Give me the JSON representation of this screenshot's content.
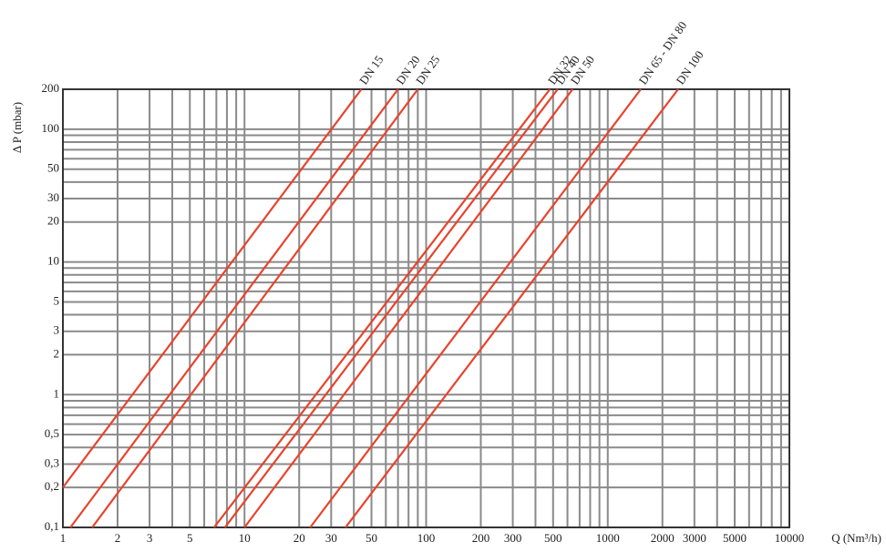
{
  "chart_data": {
    "type": "line",
    "x_label": "Q (Nm³/h)",
    "y_label": "Δ P (mbar)",
    "log_x": true,
    "log_y": true,
    "color": "#e8432c",
    "xlim": [
      1,
      10000
    ],
    "ylim": [
      0.1,
      200
    ],
    "xticks": [
      1,
      2,
      3,
      5,
      10,
      20,
      30,
      50,
      100,
      200,
      300,
      500,
      1000,
      2000,
      3000,
      5000,
      10000
    ],
    "yticks": [
      {
        "value": 0.1,
        "label": "0,1"
      },
      {
        "value": 0.2,
        "label": "0,2"
      },
      {
        "value": 0.3,
        "label": "0,3"
      },
      {
        "value": 0.5,
        "label": "0,5"
      },
      1,
      2,
      3,
      5,
      10,
      20,
      30,
      50,
      100,
      200
    ],
    "xgrid": [
      1,
      2,
      3,
      4,
      5,
      6,
      7,
      8,
      9,
      10,
      20,
      30,
      40,
      50,
      60,
      70,
      80,
      90,
      100,
      200,
      300,
      400,
      500,
      600,
      700,
      800,
      900,
      1000,
      2000,
      3000,
      4000,
      5000,
      6000,
      7000,
      8000,
      9000,
      10000
    ],
    "ygrid": [
      0.1,
      0.2,
      0.3,
      0.4,
      0.5,
      0.6,
      0.7,
      0.8,
      0.9,
      1,
      2,
      3,
      4,
      5,
      6,
      7,
      8,
      9,
      10,
      20,
      30,
      40,
      50,
      60,
      70,
      80,
      90,
      100,
      200
    ],
    "series": [
      {
        "name": "DN 15",
        "x": [
          1,
          44
        ],
        "values": [
          0.2,
          200
        ]
      },
      {
        "name": "DN 20",
        "x": [
          1.1,
          70
        ],
        "values": [
          0.1,
          200
        ]
      },
      {
        "name": "DN 25",
        "x": [
          1.45,
          90
        ],
        "values": [
          0.1,
          200
        ]
      },
      {
        "name": "DN 32",
        "x": [
          6.8,
          480
        ],
        "values": [
          0.1,
          200
        ]
      },
      {
        "name": "DN 40",
        "x": [
          7.8,
          530
        ],
        "values": [
          0.1,
          200
        ]
      },
      {
        "name": "DN 50",
        "x": [
          10,
          640
        ],
        "values": [
          0.1,
          200
        ]
      },
      {
        "name": "DN 65 - DN 80",
        "x": [
          23,
          1520
        ],
        "values": [
          0.1,
          200
        ]
      },
      {
        "name": "DN 100",
        "x": [
          36,
          2440
        ],
        "values": [
          0.1,
          200
        ]
      }
    ]
  }
}
